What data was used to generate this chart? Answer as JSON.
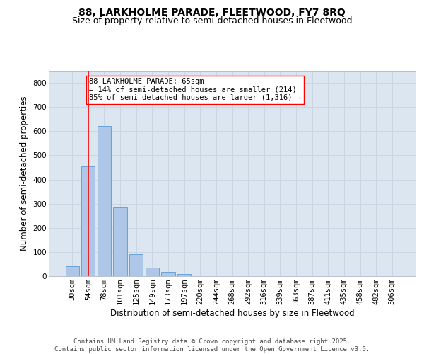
{
  "title_line1": "88, LARKHOLME PARADE, FLEETWOOD, FY7 8RQ",
  "title_line2": "Size of property relative to semi-detached houses in Fleetwood",
  "xlabel": "Distribution of semi-detached houses by size in Fleetwood",
  "ylabel": "Number of semi-detached properties",
  "categories": [
    "30sqm",
    "54sqm",
    "78sqm",
    "101sqm",
    "125sqm",
    "149sqm",
    "173sqm",
    "197sqm",
    "220sqm",
    "244sqm",
    "268sqm",
    "292sqm",
    "316sqm",
    "339sqm",
    "363sqm",
    "387sqm",
    "411sqm",
    "435sqm",
    "458sqm",
    "482sqm",
    "506sqm"
  ],
  "values": [
    40,
    455,
    620,
    285,
    90,
    35,
    18,
    10,
    0,
    0,
    0,
    0,
    0,
    0,
    0,
    0,
    0,
    0,
    0,
    0,
    0
  ],
  "bar_color": "#aec6e8",
  "bar_edge_color": "#5b9bd5",
  "grid_color": "#c8d4e3",
  "background_color": "#dce6f1",
  "vline_x": 1,
  "vline_color": "red",
  "annotation_text": "88 LARKHOLME PARADE: 65sqm\n← 14% of semi-detached houses are smaller (214)\n85% of semi-detached houses are larger (1,316) →",
  "annotation_box_color": "white",
  "annotation_box_edge": "red",
  "footer_text": "Contains HM Land Registry data © Crown copyright and database right 2025.\nContains public sector information licensed under the Open Government Licence v3.0.",
  "ylim": [
    0,
    850
  ],
  "yticks": [
    0,
    100,
    200,
    300,
    400,
    500,
    600,
    700,
    800
  ],
  "title_fontsize": 10,
  "subtitle_fontsize": 9,
  "axis_label_fontsize": 8.5,
  "tick_fontsize": 7.5,
  "annotation_fontsize": 7.5,
  "footer_fontsize": 6.5
}
